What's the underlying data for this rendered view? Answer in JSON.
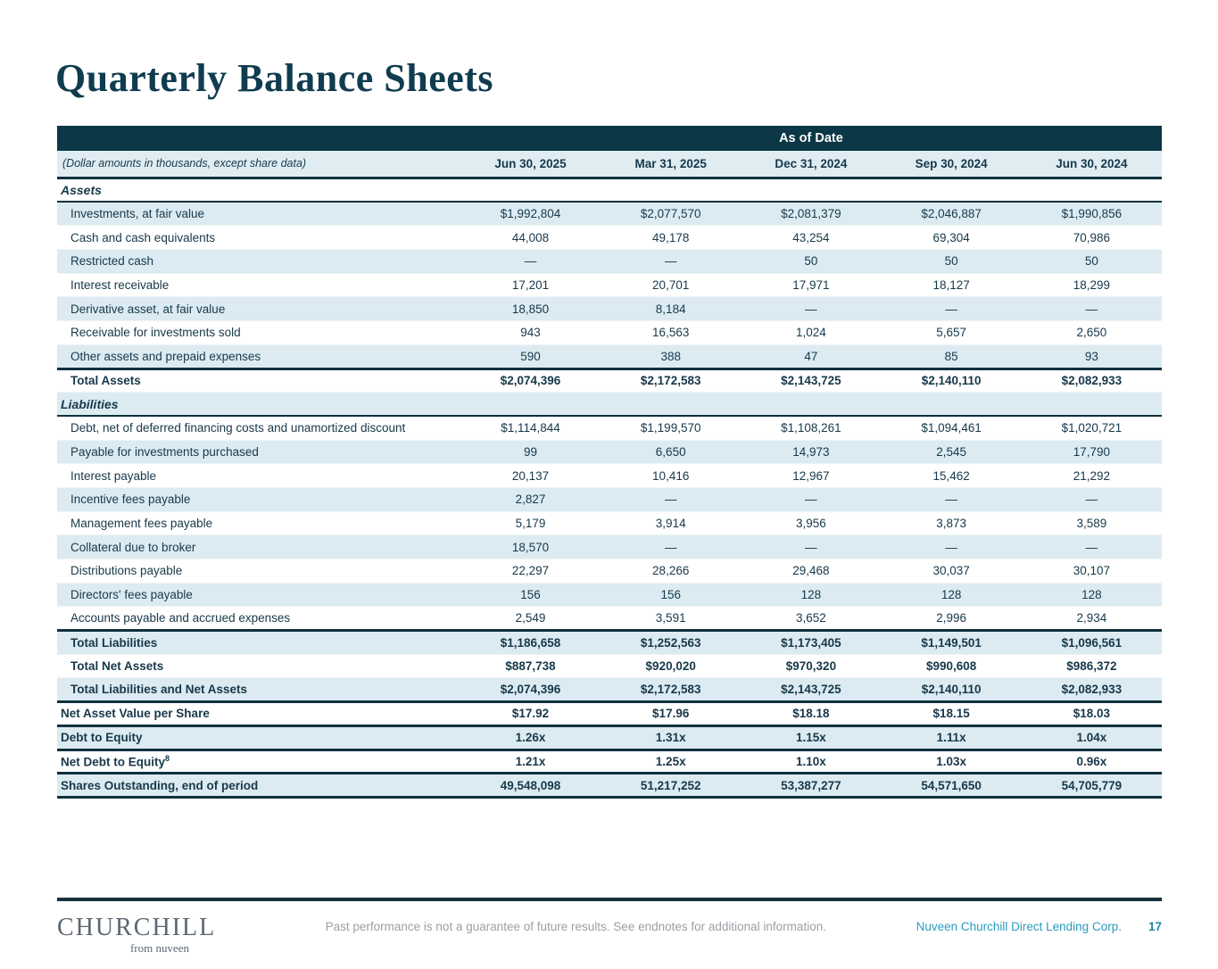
{
  "title": "Quarterly Balance Sheets",
  "table": {
    "band_header": "As of Date",
    "note": "(Dollar amounts in thousands, except share data)",
    "columns": [
      "Jun 30, 2025",
      "Mar 31, 2025",
      "Dec 31, 2024",
      "Sep 30, 2024",
      "Jun 30, 2024"
    ],
    "rows": [
      {
        "label": "Assets",
        "kind": "section",
        "values": [
          "",
          "",
          "",
          "",
          ""
        ]
      },
      {
        "label": "Investments, at fair value",
        "kind": "data",
        "values": [
          "$1,992,804",
          "$2,077,570",
          "$2,081,379",
          "$2,046,887",
          "$1,990,856"
        ]
      },
      {
        "label": "Cash and cash equivalents",
        "kind": "data",
        "values": [
          "44,008",
          "49,178",
          "43,254",
          "69,304",
          "70,986"
        ]
      },
      {
        "label": "Restricted cash",
        "kind": "data",
        "values": [
          "—",
          "—",
          "50",
          "50",
          "50"
        ]
      },
      {
        "label": "Interest receivable",
        "kind": "data",
        "values": [
          "17,201",
          "20,701",
          "17,971",
          "18,127",
          "18,299"
        ]
      },
      {
        "label": "Derivative asset, at fair value",
        "kind": "data",
        "values": [
          "18,850",
          "8,184",
          "—",
          "—",
          "—"
        ]
      },
      {
        "label": "Receivable for investments sold",
        "kind": "data",
        "values": [
          "943",
          "16,563",
          "1,024",
          "5,657",
          "2,650"
        ]
      },
      {
        "label": "Other assets and prepaid expenses",
        "kind": "data",
        "values": [
          "590",
          "388",
          "47",
          "85",
          "93"
        ]
      },
      {
        "label": "Total Assets",
        "kind": "total",
        "values": [
          "$2,074,396",
          "$2,172,583",
          "$2,143,725",
          "$2,140,110",
          "$2,082,933"
        ]
      },
      {
        "label": "Liabilities",
        "kind": "section",
        "values": [
          "",
          "",
          "",
          "",
          ""
        ]
      },
      {
        "label": "Debt, net of deferred financing costs and unamortized discount",
        "kind": "data",
        "values": [
          "$1,114,844",
          "$1,199,570",
          "$1,108,261",
          "$1,094,461",
          "$1,020,721"
        ]
      },
      {
        "label": "Payable for investments purchased",
        "kind": "data",
        "values": [
          "99",
          "6,650",
          "14,973",
          "2,545",
          "17,790"
        ]
      },
      {
        "label": "Interest payable",
        "kind": "data",
        "values": [
          "20,137",
          "10,416",
          "12,967",
          "15,462",
          "21,292"
        ]
      },
      {
        "label": "Incentive fees payable",
        "kind": "data",
        "values": [
          "2,827",
          "—",
          "—",
          "—",
          "—"
        ]
      },
      {
        "label": "Management fees payable",
        "kind": "data",
        "values": [
          "5,179",
          "3,914",
          "3,956",
          "3,873",
          "3,589"
        ]
      },
      {
        "label": "Collateral due to broker",
        "kind": "data",
        "values": [
          "18,570",
          "—",
          "—",
          "—",
          "—"
        ]
      },
      {
        "label": "Distributions payable",
        "kind": "data",
        "values": [
          "22,297",
          "28,266",
          "29,468",
          "30,037",
          "30,107"
        ]
      },
      {
        "label": "Directors' fees payable",
        "kind": "data",
        "values": [
          "156",
          "156",
          "128",
          "128",
          "128"
        ]
      },
      {
        "label": "Accounts payable and accrued expenses",
        "kind": "data",
        "values": [
          "2,549",
          "3,591",
          "3,652",
          "2,996",
          "2,934"
        ]
      },
      {
        "label": "Total Liabilities",
        "kind": "total",
        "values": [
          "$1,186,658",
          "$1,252,563",
          "$1,173,405",
          "$1,149,501",
          "$1,096,561"
        ]
      },
      {
        "label": "Total Net Assets",
        "kind": "total",
        "values": [
          "$887,738",
          "$920,020",
          "$970,320",
          "$990,608",
          "$986,372"
        ]
      },
      {
        "label": "Total Liabilities and Net Assets",
        "kind": "total",
        "values": [
          "$2,074,396",
          "$2,172,583",
          "$2,143,725",
          "$2,140,110",
          "$2,082,933"
        ]
      },
      {
        "label": "Net Asset Value per Share",
        "kind": "metric",
        "values": [
          "$17.92",
          "$17.96",
          "$18.18",
          "$18.15",
          "$18.03"
        ]
      },
      {
        "label": "Debt to Equity",
        "kind": "metric",
        "values": [
          "1.26x",
          "1.31x",
          "1.15x",
          "1.11x",
          "1.04x"
        ]
      },
      {
        "label": "Net Debt to Equity",
        "label_sup": "8",
        "kind": "metric",
        "values": [
          "1.21x",
          "1.25x",
          "1.10x",
          "1.03x",
          "0.96x"
        ]
      },
      {
        "label": "Shares Outstanding, end of period",
        "kind": "metric",
        "values": [
          "49,548,098",
          "51,217,252",
          "53,387,277",
          "54,571,650",
          "54,705,779"
        ]
      }
    ]
  },
  "footer": {
    "logo_primary": "CHURCHILL",
    "logo_secondary": "from nuveen",
    "disclaimer": "Past performance is not a guarantee of future results. See endnotes for additional information.",
    "company": "Nuveen Churchill Direct Lending Corp.",
    "page_number": "17"
  },
  "colors": {
    "brand_dark": "#0b3747",
    "row_stripe": "#dcebf2",
    "accent_teal": "#2a9cc0",
    "logo_gray": "#5d6771"
  }
}
